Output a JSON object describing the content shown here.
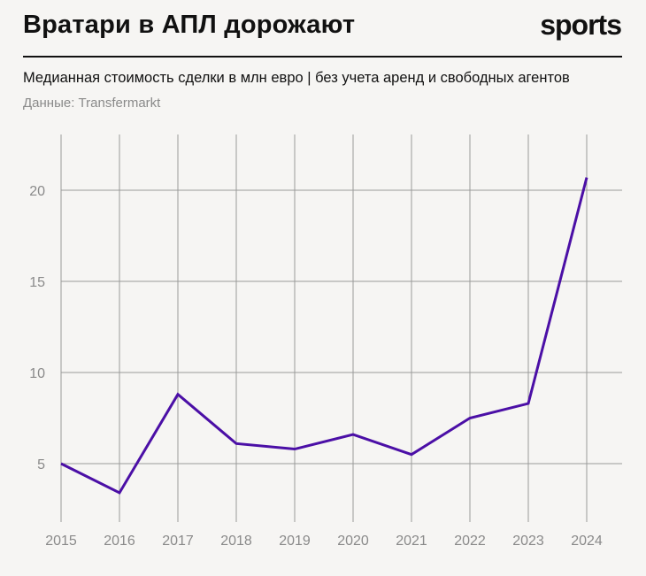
{
  "header": {
    "title": "Вратари в АПЛ дорожают",
    "logo": "sports",
    "subtitle": "Медианная стоимость сделки в млн евро | без учета аренд и свободных агентов",
    "source": "Данные: Transfermarkt"
  },
  "colors": {
    "line": "#4b0fa6",
    "grid": "#9a9a9a",
    "background": "#f6f5f3"
  },
  "chart_data": {
    "type": "line",
    "title": "Вратари в АПЛ дорожают",
    "subtitle": "Медианная стоимость сделки в млн евро | без учета аренд и свободных агентов",
    "xlabel": "",
    "ylabel": "",
    "x": [
      "2015",
      "2016",
      "2017",
      "2018",
      "2019",
      "2020",
      "2021",
      "2022",
      "2023",
      "2024"
    ],
    "series": [
      {
        "values": [
          5.0,
          3.4,
          8.8,
          6.1,
          5.8,
          6.6,
          5.5,
          7.5,
          8.3,
          20.7
        ]
      }
    ],
    "yticks": [
      5,
      10,
      15,
      20
    ],
    "ylim": [
      1,
      24
    ],
    "grid": true,
    "legend": "none"
  }
}
